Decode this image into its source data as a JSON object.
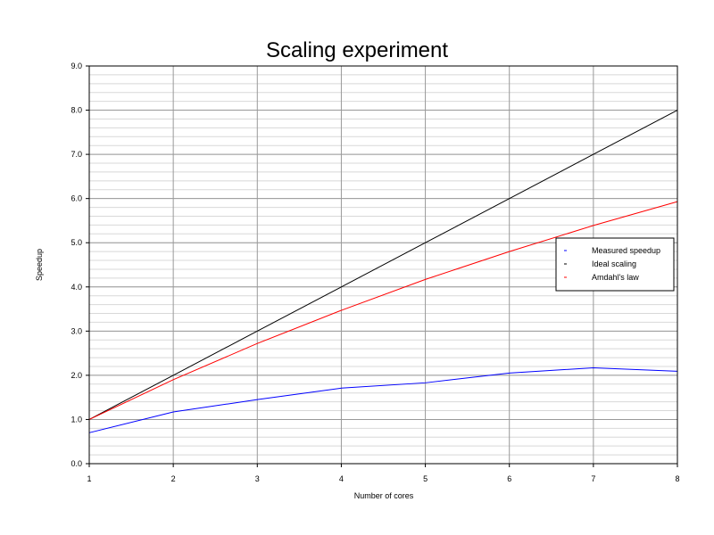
{
  "chart_data": {
    "type": "line",
    "title": "Scaling experiment",
    "xlabel": "Number of cores",
    "ylabel": "Speedup",
    "xlim": [
      1,
      8
    ],
    "ylim": [
      0,
      9
    ],
    "x": [
      1,
      2,
      3,
      4,
      5,
      6,
      7,
      8
    ],
    "x_ticks": [
      "1",
      "2",
      "3",
      "4",
      "5",
      "6",
      "7",
      "8"
    ],
    "y_ticks": [
      "0.0",
      "1.0",
      "2.0",
      "3.0",
      "4.0",
      "5.0",
      "6.0",
      "7.0",
      "8.0",
      "9.0"
    ],
    "grid": true,
    "minor_grid": true,
    "legend_position": "right",
    "series": [
      {
        "name": "Measured speedup",
        "color": "#0000ff",
        "values": [
          0.7,
          1.17,
          1.45,
          1.71,
          1.83,
          2.05,
          2.17,
          2.09
        ]
      },
      {
        "name": "Ideal scaling",
        "color": "#000000",
        "values": [
          1,
          2,
          3,
          4,
          5,
          6,
          7,
          8
        ]
      },
      {
        "name": "Amdahl's law",
        "color": "#ff0000",
        "values": [
          1.0,
          1.9,
          2.72,
          3.47,
          4.17,
          4.8,
          5.39,
          5.93
        ]
      }
    ]
  }
}
